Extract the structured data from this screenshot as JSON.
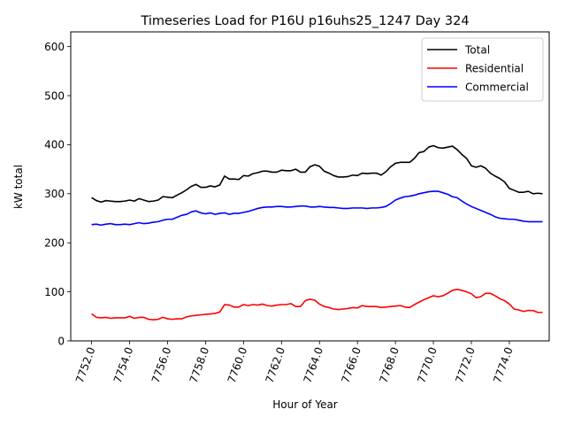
{
  "chart_data": {
    "type": "line",
    "title": "Timeseries Load for P16U p16uhs25_1247  Day 324",
    "xlabel": "Hour of Year",
    "ylabel": "kW total",
    "xlim": [
      7750.9,
      7776.1
    ],
    "ylim": [
      0,
      630
    ],
    "x_ticks": [
      7752,
      7754,
      7756,
      7758,
      7760,
      7762,
      7764,
      7766,
      7768,
      7770,
      7772,
      7774
    ],
    "x_tick_labels": [
      "7752.0",
      "7754.0",
      "7756.0",
      "7758.0",
      "7760.0",
      "7762.0",
      "7764.0",
      "7766.0",
      "7768.0",
      "7770.0",
      "7772.0",
      "7774.0"
    ],
    "y_ticks": [
      0,
      100,
      200,
      300,
      400,
      500,
      600
    ],
    "y_tick_labels": [
      "0",
      "100",
      "200",
      "300",
      "400",
      "500",
      "600"
    ],
    "grid": false,
    "legend_position": "top-right",
    "x_start": 7752.0,
    "x_step": 0.25,
    "series": [
      {
        "name": "Total",
        "color": "#000000",
        "values": [
          292,
          286,
          283,
          286,
          285,
          284,
          284,
          285,
          287,
          285,
          290,
          287,
          284,
          285,
          287,
          294,
          293,
          292,
          297,
          302,
          308,
          315,
          319,
          313,
          313,
          316,
          314,
          318,
          336,
          330,
          330,
          329,
          337,
          336,
          341,
          343,
          346,
          346,
          344,
          344,
          348,
          347,
          347,
          350,
          344,
          344,
          355,
          359,
          356,
          346,
          342,
          337,
          334,
          334,
          335,
          338,
          337,
          342,
          341,
          342,
          342,
          338,
          345,
          355,
          362,
          364,
          364,
          364,
          372,
          384,
          386,
          395,
          398,
          394,
          393,
          395,
          397,
          390,
          380,
          372,
          357,
          354,
          357,
          352,
          342,
          336,
          331,
          324,
          311,
          307,
          303,
          303,
          305,
          300,
          301,
          300
        ]
      },
      {
        "name": "Residential",
        "color": "#ff0000",
        "values": [
          55,
          48,
          47,
          48,
          46,
          47,
          47,
          47,
          50,
          46,
          48,
          48,
          44,
          43,
          44,
          48,
          45,
          44,
          45,
          45,
          49,
          51,
          52,
          53,
          54,
          55,
          56,
          59,
          74,
          73,
          69,
          69,
          74,
          72,
          74,
          73,
          75,
          72,
          71,
          73,
          74,
          74,
          76,
          70,
          70,
          82,
          85,
          83,
          75,
          70,
          68,
          65,
          64,
          65,
          66,
          68,
          67,
          72,
          70,
          70,
          70,
          68,
          69,
          70,
          71,
          72,
          69,
          68,
          74,
          79,
          84,
          88,
          92,
          90,
          92,
          97,
          103,
          105,
          103,
          100,
          96,
          88,
          90,
          97,
          97,
          92,
          86,
          82,
          75,
          65,
          63,
          60,
          62,
          62,
          58,
          58
        ]
      },
      {
        "name": "Commercial",
        "color": "#0000ff",
        "values": [
          237,
          238,
          236,
          238,
          239,
          237,
          237,
          238,
          237,
          239,
          241,
          239,
          240,
          242,
          243,
          246,
          248,
          248,
          252,
          256,
          258,
          263,
          265,
          261,
          259,
          261,
          258,
          260,
          261,
          258,
          260,
          260,
          262,
          264,
          267,
          270,
          272,
          273,
          273,
          274,
          274,
          273,
          273,
          274,
          275,
          275,
          273,
          273,
          274,
          273,
          272,
          272,
          271,
          270,
          270,
          271,
          271,
          271,
          270,
          271,
          271,
          272,
          274,
          280,
          287,
          291,
          294,
          295,
          297,
          300,
          302,
          304,
          305,
          305,
          302,
          299,
          294,
          292,
          285,
          279,
          274,
          270,
          266,
          262,
          258,
          253,
          250,
          249,
          248,
          248,
          246,
          244,
          243,
          243,
          243,
          243
        ]
      }
    ]
  }
}
